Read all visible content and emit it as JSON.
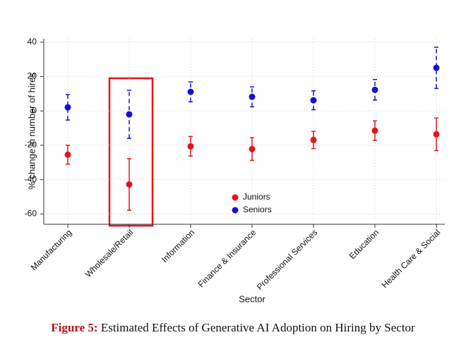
{
  "chart_data": {
    "type": "errorbar",
    "categories": [
      "Manufacturing",
      "Wholesale/Retail",
      "Information",
      "Finance & Insurance",
      "Professional Services",
      "Education",
      "Health Care & Social"
    ],
    "series": [
      {
        "name": "Juniors",
        "color": "#e4141c",
        "dashed": false,
        "values": [
          -25.5,
          -42.8,
          -20.6,
          -22.2,
          -16.9,
          -11.5,
          -13.6
        ],
        "errors": [
          5.5,
          15,
          5.7,
          6.6,
          5,
          5.7,
          9.5
        ]
      },
      {
        "name": "Seniors",
        "color": "#1212d0",
        "dashed": true,
        "values": [
          2.1,
          -2,
          11.1,
          8.2,
          6.2,
          12.3,
          25.1
        ],
        "errors": [
          7.4,
          14,
          5.8,
          5.8,
          5.5,
          6,
          12
        ]
      }
    ],
    "ylim": [
      -66,
      42
    ],
    "yticks": [
      -60,
      -40,
      -20,
      0,
      20,
      40
    ],
    "ylabel": "% change in number of hires",
    "xlabel": "Sector",
    "grid": true,
    "legend": "inside-bottom-center",
    "caption": {
      "label": "Figure 5:",
      "text": "Estimated Effects of Generative AI Adoption on Hiring by Sector"
    }
  }
}
